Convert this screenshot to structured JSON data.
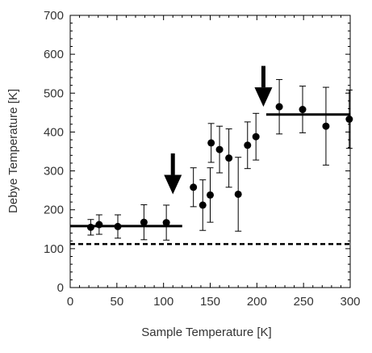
{
  "chart_data": {
    "type": "scatter",
    "title": "",
    "xlabel": "Sample Temperature [K]",
    "ylabel": "Debye Temperature [K]",
    "xlim": [
      0,
      300
    ],
    "ylim": [
      0,
      700
    ],
    "xticks": [
      "0",
      "50",
      "100",
      "150",
      "200",
      "250",
      "300"
    ],
    "yticks": [
      "0",
      "100",
      "200",
      "300",
      "400",
      "500",
      "600",
      "700"
    ],
    "grid": false,
    "legend": "none",
    "series": [
      {
        "marker": "filled-circle",
        "color": "#000000",
        "points": [
          {
            "x": 22,
            "y": 155,
            "err": 20
          },
          {
            "x": 31,
            "y": 162,
            "err": 25
          },
          {
            "x": 51,
            "y": 157,
            "err": 30
          },
          {
            "x": 79,
            "y": 168,
            "err": 45
          },
          {
            "x": 103,
            "y": 167,
            "err": 45
          },
          {
            "x": 132,
            "y": 258,
            "err": 50
          },
          {
            "x": 142,
            "y": 212,
            "err": 65
          },
          {
            "x": 150,
            "y": 238,
            "err": 70
          },
          {
            "x": 151,
            "y": 372,
            "err": 50
          },
          {
            "x": 160,
            "y": 355,
            "err": 60
          },
          {
            "x": 170,
            "y": 333,
            "err": 75
          },
          {
            "x": 180,
            "y": 240,
            "err": 95
          },
          {
            "x": 190,
            "y": 366,
            "err": 60
          },
          {
            "x": 199,
            "y": 388,
            "err": 60
          },
          {
            "x": 224,
            "y": 465,
            "err": 70
          },
          {
            "x": 249,
            "y": 458,
            "err": 60
          },
          {
            "x": 274,
            "y": 415,
            "err": 100
          },
          {
            "x": 299,
            "y": 433,
            "err": 75
          }
        ]
      }
    ],
    "reference_lines": [
      {
        "style": "solid",
        "x": [
          0,
          120
        ],
        "y": 158
      },
      {
        "style": "solid",
        "x": [
          210,
          300
        ],
        "y": 445
      },
      {
        "style": "dashed",
        "x": [
          0,
          300
        ],
        "y": 112
      }
    ],
    "arrows": [
      {
        "x": 110,
        "y_top": 345,
        "y_tip": 240,
        "direction": "down"
      },
      {
        "x": 207,
        "y_top": 570,
        "y_tip": 465,
        "direction": "down"
      }
    ]
  }
}
